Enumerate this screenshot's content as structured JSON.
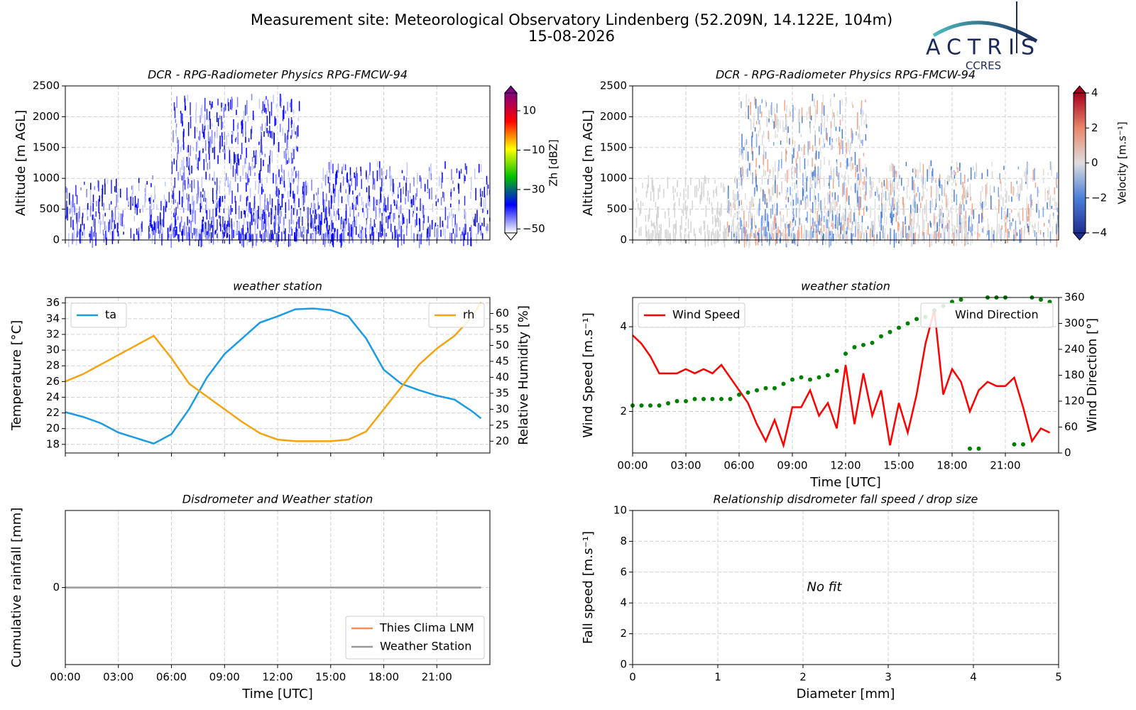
{
  "header": {
    "title": "Measurement site: Meteorological Observatory Lindenberg (52.209N, 14.122E, 104m)",
    "date": "15-08-2026",
    "logo": "ACTRIS",
    "logo_sub": "CCRES"
  },
  "chart_data": [
    {
      "type": "heatmap",
      "title": "DCR - RPG-Radiometer Physics RPG-FMCW-94",
      "ylabel": "Altitude [m AGL]",
      "xlim": [
        0,
        24
      ],
      "xticks": [
        0,
        3,
        6,
        9,
        12,
        15,
        18,
        21
      ],
      "ylim": [
        0,
        2500
      ],
      "yticks": [
        0,
        500,
        1000,
        1500,
        2000,
        2500
      ],
      "grid": true,
      "colorbar": {
        "label": "Zh [dBZ]",
        "clim": [
          -52,
          19
        ],
        "ticks": [
          {
            "value": -50,
            "label": "−50"
          },
          {
            "value": -30,
            "label": "−30"
          },
          {
            "value": -10,
            "label": "−10"
          },
          10
        ],
        "colors": [
          "#ffffff",
          "#0000ff",
          "#00c000",
          "#ffff00",
          "#ff0000",
          "#800080"
        ]
      }
    },
    {
      "type": "heatmap",
      "title": "DCR - RPG-Radiometer Physics RPG-FMCW-94",
      "ylabel": "Altitude [m AGL]",
      "xlim": [
        0,
        24
      ],
      "xticks": [
        0,
        3,
        6,
        9,
        12,
        15,
        18,
        21
      ],
      "ylim": [
        0,
        2500
      ],
      "yticks": [
        0,
        500,
        1000,
        1500,
        2000,
        2500
      ],
      "grid": true,
      "colorbar": {
        "label": "Velocity [m.s⁻¹]",
        "clim": [
          -4,
          4
        ],
        "ticks": [
          {
            "value": -4,
            "label": "−4"
          },
          {
            "value": -2,
            "label": "−2"
          },
          0,
          2,
          4
        ],
        "colors": [
          "#1e2d8f",
          "#4a7fd9",
          "#dddddd",
          "#e8876a",
          "#a5001c"
        ]
      }
    },
    {
      "type": "line",
      "title": "weather station",
      "ylabel": "Temperature [°C]",
      "y2label": "Relative Humidity [%]",
      "xlim": [
        0,
        24
      ],
      "xticks": [
        0,
        3,
        6,
        9,
        12,
        15,
        18,
        21
      ],
      "ylim": [
        16.9,
        36.7
      ],
      "yticks": [
        18,
        20,
        22,
        24,
        26,
        28,
        30,
        32,
        34,
        36
      ],
      "y2lim": [
        16.3,
        65
      ],
      "y2ticks": [
        20,
        25,
        30,
        35,
        40,
        45,
        50,
        55,
        60
      ],
      "grid": true,
      "x": [
        0,
        1,
        2,
        3,
        4,
        5,
        6,
        7,
        8,
        9,
        10,
        11,
        12,
        13,
        14,
        15,
        16,
        17,
        18,
        19,
        20,
        21,
        22,
        23,
        23.5
      ],
      "series": [
        {
          "name": "ta",
          "color": "#1a9be6",
          "legend": "upper left",
          "values": [
            22.1,
            21.5,
            20.7,
            19.5,
            18.8,
            18.1,
            19.3,
            22.5,
            26.5,
            29.5,
            31.5,
            33.5,
            34.3,
            35.2,
            35.3,
            35.1,
            34.3,
            31.5,
            27.5,
            25.7,
            24.9,
            24.2,
            23.7,
            22.2,
            21.3
          ]
        },
        {
          "name": "rh",
          "color": "#f5a30f",
          "legend": "upper right",
          "axis": "y2",
          "values": [
            38.7,
            41,
            44,
            47,
            50,
            53,
            46,
            38,
            34,
            30,
            26,
            22.5,
            20.5,
            20,
            20,
            20,
            20.5,
            23,
            30,
            37,
            44,
            49,
            53,
            59,
            63.5
          ]
        }
      ]
    },
    {
      "type": "line",
      "title": "weather station",
      "xlabel": "Time [UTC]",
      "ylabel": "Wind Speed [m.s⁻¹]",
      "y2label": "Wind Direction [°]",
      "xlim": [
        0,
        24
      ],
      "xticks": [
        {
          "value": 0,
          "label": "00:00"
        },
        {
          "value": 3,
          "label": "03:00"
        },
        {
          "value": 6,
          "label": "06:00"
        },
        {
          "value": 9,
          "label": "09:00"
        },
        {
          "value": 12,
          "label": "12:00"
        },
        {
          "value": 15,
          "label": "15:00"
        },
        {
          "value": 18,
          "label": "18:00"
        },
        {
          "value": 21,
          "label": "21:00"
        }
      ],
      "ylim": [
        1.02,
        4.69
      ],
      "yticks": [
        2,
        4
      ],
      "y2lim": [
        0,
        360
      ],
      "y2ticks": [
        0,
        60,
        120,
        180,
        240,
        300,
        360
      ],
      "grid": true,
      "x": [
        0,
        0.5,
        1,
        1.5,
        2,
        2.5,
        3,
        3.5,
        4,
        4.5,
        5,
        5.5,
        6,
        6.5,
        7,
        7.5,
        8,
        8.5,
        9,
        9.5,
        10,
        10.5,
        11,
        11.5,
        12,
        12.5,
        13,
        13.5,
        14,
        14.5,
        15,
        15.5,
        16,
        16.5,
        17,
        17.5,
        18,
        18.5,
        19,
        19.5,
        20,
        20.5,
        21,
        21.5,
        22,
        22.5,
        23,
        23.5
      ],
      "series": [
        {
          "name": "Wind Speed",
          "color": "#ff0000",
          "legend": "upper left",
          "values": [
            3.8,
            3.6,
            3.3,
            2.9,
            2.9,
            2.9,
            3.0,
            2.9,
            3.0,
            2.9,
            3.1,
            2.8,
            2.5,
            2.2,
            1.7,
            1.3,
            1.8,
            1.2,
            2.1,
            2.1,
            2.5,
            1.9,
            2.2,
            1.6,
            3.1,
            1.7,
            2.9,
            1.9,
            2.5,
            1.2,
            2.2,
            1.5,
            2.4,
            3.6,
            4.4,
            2.4,
            3.0,
            2.7,
            2.0,
            2.5,
            2.7,
            2.6,
            2.6,
            2.8,
            2.1,
            1.3,
            1.6,
            1.5
          ]
        },
        {
          "name": "Wind Direction",
          "color": "#008000",
          "legend": "upper right",
          "axis": "y2",
          "marker": "dot",
          "values": [
            110,
            110,
            110,
            110,
            115,
            120,
            120,
            125,
            125,
            125,
            125,
            125,
            135,
            140,
            145,
            150,
            150,
            160,
            170,
            175,
            170,
            175,
            180,
            190,
            230,
            245,
            250,
            255,
            270,
            280,
            290,
            300,
            310,
            315,
            330,
            340,
            350,
            355,
            10,
            10,
            360,
            360,
            360,
            20,
            20,
            360,
            355,
            350
          ]
        }
      ]
    },
    {
      "type": "line",
      "title": "Disdrometer and Weather station",
      "xlabel": "Time [UTC]",
      "ylabel": "Cumulative rainfall [mm]",
      "xlim": [
        0,
        24
      ],
      "xticks": [
        {
          "value": 0,
          "label": "00:00"
        },
        {
          "value": 3,
          "label": "03:00"
        },
        {
          "value": 6,
          "label": "06:00"
        },
        {
          "value": 9,
          "label": "09:00"
        },
        {
          "value": 12,
          "label": "12:00"
        },
        {
          "value": 15,
          "label": "15:00"
        },
        {
          "value": 18,
          "label": "18:00"
        },
        {
          "value": 21,
          "label": "21:00"
        }
      ],
      "ylim": [
        -0.055,
        0.055
      ],
      "yticks": [
        0
      ],
      "grid": true,
      "legend": "lower right",
      "x": [
        0,
        23.5
      ],
      "series": [
        {
          "name": "Thies Clima LNM",
          "color": "#f28e5b",
          "values": [
            null,
            null
          ]
        },
        {
          "name": "Weather Station",
          "color": "#999999",
          "values": [
            0,
            0
          ]
        }
      ]
    },
    {
      "type": "scatter",
      "title": "Relationship disdrometer fall speed / drop size",
      "xlabel": "Diameter [mm]",
      "ylabel": "Fall speed [m.s⁻¹]",
      "annotation": "No fit",
      "xlim": [
        0,
        5
      ],
      "xticks": [
        0,
        1,
        2,
        3,
        4,
        5
      ],
      "ylim": [
        0,
        10
      ],
      "yticks": [
        0,
        2,
        4,
        6,
        8,
        10
      ],
      "grid": true,
      "x": [],
      "values": []
    }
  ]
}
